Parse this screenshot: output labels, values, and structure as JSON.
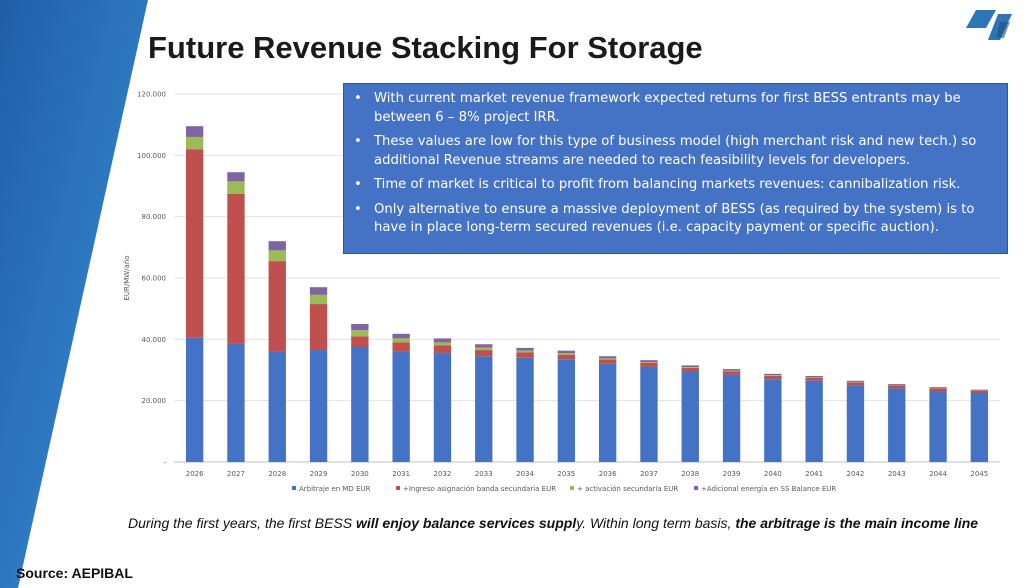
{
  "slide": {
    "title": "Future Revenue Stacking For Storage",
    "source": "Source: AEPIBAL",
    "colors": {
      "band": "#2e75b6",
      "box": "#4472c4",
      "logo": "#2e75b6"
    }
  },
  "info_box": {
    "bullets": [
      "With current market revenue framework expected returns for first BESS entrants may be between 6 – 8% project IRR.",
      "These values are low for this type of business model (high merchant risk and new tech.) so additional Revenue streams are needed to reach feasibility levels for developers.",
      "Time of market is critical to profit from balancing markets revenues: cannibalization risk.",
      "Only alternative to ensure a massive deployment of BESS (as required by the system) is to have in place long-term secured revenues (i.e. capacity payment or specific auction)."
    ]
  },
  "footnote": {
    "p1": "During the first years, the first BESS ",
    "b1": "will enjoy balance services suppl",
    "p2": "y. Within long term basis, ",
    "b2": "the arbitrage is the main income line"
  },
  "chart_data": {
    "type": "bar",
    "stacked": true,
    "ylabel": "EUR/MW/año",
    "ylim": [
      0,
      120000
    ],
    "yticks": [
      0,
      20000,
      40000,
      60000,
      80000,
      100000,
      120000
    ],
    "ytick_labels": [
      "-",
      "20.000",
      "40.000",
      "60.000",
      "80.000",
      "100.000",
      "120.000"
    ],
    "grid": true,
    "legend_position": "bottom",
    "categories": [
      "2026",
      "2027",
      "2028",
      "2029",
      "2030",
      "2031",
      "2032",
      "2033",
      "2034",
      "2035",
      "2036",
      "2037",
      "2038",
      "2039",
      "2040",
      "2041",
      "2042",
      "2043",
      "2044",
      "2045"
    ],
    "series": [
      {
        "name": "Arbitraje en MD EUR",
        "color": "#4472c4",
        "values": [
          40500,
          38500,
          36000,
          36500,
          37500,
          36000,
          35500,
          34500,
          34000,
          33500,
          32000,
          31000,
          29500,
          28500,
          27000,
          26500,
          25000,
          24000,
          23000,
          22500
        ]
      },
      {
        "name": "+Ingreso asignación banda secundaria EUR",
        "color": "#c0504d",
        "values": [
          61500,
          49000,
          29500,
          15000,
          3500,
          3000,
          2500,
          2000,
          1700,
          1500,
          1400,
          1300,
          1200,
          1100,
          1100,
          1000,
          1000,
          1000,
          1000,
          800
        ]
      },
      {
        "name": "+ activación secundaria EUR",
        "color": "#9bbb59",
        "values": [
          4000,
          4000,
          3500,
          3000,
          2000,
          1300,
          1000,
          800,
          600,
          500,
          400,
          300,
          250,
          200,
          200,
          150,
          150,
          100,
          100,
          100
        ]
      },
      {
        "name": "+Adicional energía en SS Balance EUR",
        "color": "#8064a2",
        "values": [
          3500,
          3000,
          3000,
          2500,
          2000,
          1500,
          1300,
          1100,
          900,
          800,
          700,
          600,
          550,
          500,
          450,
          400,
          350,
          300,
          300,
          200
        ]
      }
    ]
  }
}
